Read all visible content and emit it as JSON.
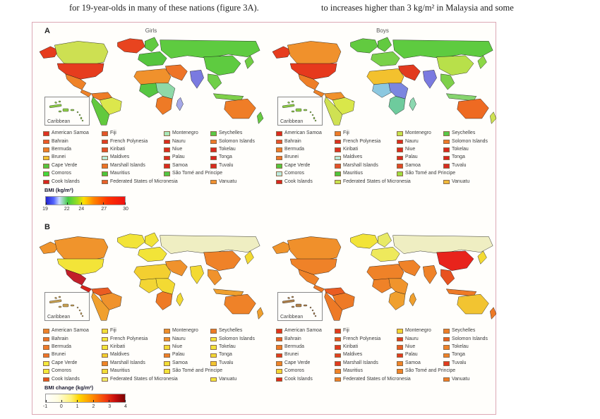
{
  "page": {
    "top_text_left": "for 19-year-olds in many of these nations (figure 3A).",
    "top_text_right": "to increases higher than 3 kg/m² in Malaysia and some"
  },
  "figure": {
    "inset_label": "Caribbean",
    "legend_countries": [
      [
        "American Samoa",
        "Bahrain",
        "Bermuda",
        "Brunei",
        "Cape Verde",
        "Comoros",
        "Cook Islands"
      ],
      [
        "Fiji",
        "French Polynesia",
        "Kiribati",
        "Maldives",
        "Marshall Islands",
        "Mauritius",
        "Federated States of Micronesia"
      ],
      [
        "Montenegro",
        "Nauru",
        "Niue",
        "Palau",
        "Samoa",
        "São Tomé and Principe",
        ""
      ],
      [
        "Seychelles",
        "Solomon Islands",
        "Tokelau",
        "Tonga",
        "Tuvalu",
        "",
        "Vanuatu"
      ]
    ],
    "panelA": {
      "label": "A",
      "girls_title": "Girls",
      "boys_title": "Boys",
      "colorbar": {
        "label": "BMI (kg/m²)",
        "stops": [
          "#2222cc 0%",
          "#5566ff 10%",
          "#ccddff 17%",
          "#44cc44 28%",
          "#99dd22 40%",
          "#ffdd00 48%",
          "#ff8800 60%",
          "#ff3300 78%",
          "#ee1111 100%"
        ],
        "ticks": [
          {
            "label": "19",
            "pct": 0
          },
          {
            "label": "22",
            "pct": 27
          },
          {
            "label": "24",
            "pct": 45
          },
          {
            "label": "27",
            "pct": 73
          },
          {
            "label": "30",
            "pct": 100
          }
        ]
      },
      "girls": {
        "inset_island_color": "#8ccc44",
        "map_colors": {
          "greenland": "#e8441f",
          "alaska": "#e63c1e",
          "canada": "#cde052",
          "usa": "#e63c1e",
          "mexico": "#ef8228",
          "central_america": "#ef8228",
          "colombia": "#ee7c27",
          "brazil": "#dce74c",
          "argentina": "#62c93e",
          "scandinavia": "#62ca40",
          "europe": "#55c53e",
          "russia": "#5ecb40",
          "middle_east": "#ee7427",
          "north_africa": "#f0912c",
          "west_africa": "#56c642",
          "east_africa": "#8fd9a8",
          "south_africa": "#ee7a26",
          "madagascar": "#a5a8e8",
          "india": "#7a7ae0",
          "china": "#5ecb40",
          "se_asia": "#6fcf48",
          "indonesia": "#7ed04a",
          "japan": "#70cd44",
          "australia": "#ef7d27",
          "new_zealand": "#67cb42"
        },
        "legend_colors": [
          [
            "#e03222",
            "#ee5826",
            "#f07e28",
            "#f3c12e",
            "#55c53e",
            "#44d83a",
            "#d9251f"
          ],
          [
            "#e4552a",
            "#e23c22",
            "#e44f28",
            "#b8ead8",
            "#ed7226",
            "#4ec43c",
            "#e8602a"
          ],
          [
            "#a8e8b8",
            "#dc2a1d",
            "#dd2d1e",
            "#dc2a1e",
            "#dc2a1e",
            "#52c643",
            ""
          ],
          [
            "#5ac846",
            "#ee7a28",
            "#da291d",
            "#da251c",
            "#d92b20",
            "",
            "#f09030"
          ]
        ]
      },
      "boys": {
        "inset_island_color": "#8ccc44",
        "map_colors": {
          "greenland": "#62ca40",
          "alaska": "#e63c1e",
          "canada": "#f0912c",
          "usa": "#e6391d",
          "mexico": "#ee7e27",
          "central_america": "#ef8228",
          "colombia": "#f0912c",
          "brazil": "#d9e74a",
          "argentina": "#cfe153",
          "scandinavia": "#62ca40",
          "europe": "#79d149",
          "russia": "#5ecb40",
          "middle_east": "#e23a1e",
          "north_africa": "#f3c12e",
          "west_africa": "#8cc8e0",
          "east_africa": "#7b86e0",
          "south_africa": "#6ecb9d",
          "madagascar": "#8cd8b0",
          "india": "#7a7ae0",
          "china": "#b8e04a",
          "se_asia": "#7ed04a",
          "indonesia": "#86d46e",
          "japan": "#8cd846",
          "australia": "#ee6a22",
          "new_zealand": "#cfe153"
        },
        "legend_colors": [
          [
            "#dd2a1e",
            "#e8502a",
            "#ef7a28",
            "#ee7428",
            "#55c53e",
            "#bce8dc",
            "#d9251f"
          ],
          [
            "#ef7b28",
            "#dc2f20",
            "#dd3322",
            "#b8e8d8",
            "#e5502a",
            "#4ec43c",
            "#c6e24e"
          ],
          [
            "#c4e24c",
            "#dc2a1d",
            "#dc2a1e",
            "#dc2a1e",
            "#e04826",
            "#a0dc40",
            ""
          ],
          [
            "#58c848",
            "#ee7a28",
            "#da291d",
            "#da251c",
            "#d92b20",
            "",
            "#f0b93a"
          ]
        ]
      }
    },
    "panelB": {
      "label": "B",
      "colorbar": {
        "label": "BMI change (kg/m²)",
        "stops": [
          "#ffffff 0%",
          "#fffde0 15%",
          "#fff176 32%",
          "#ffd500 42%",
          "#ff9000 58%",
          "#f23a10 76%",
          "#c40d0d 88%",
          "#7a0403 100%"
        ],
        "ticks": [
          {
            "label": "-1",
            "pct": 0
          },
          {
            "label": "0",
            "pct": 20
          },
          {
            "label": "1",
            "pct": 40
          },
          {
            "label": "2",
            "pct": 60
          },
          {
            "label": "3",
            "pct": 80
          },
          {
            "label": "4",
            "pct": 100
          }
        ]
      },
      "girls": {
        "inset_island_color": "#c8a050",
        "map_colors": {
          "greenland": "#f2e438",
          "alaska": "#f0942c",
          "canada": "#f0942c",
          "usa": "#f3e438",
          "mexico": "#c21f2a",
          "central_america": "#d8251c",
          "colombia": "#ea5c22",
          "brazil": "#f0922c",
          "argentina": "#f0a02e",
          "scandinavia": "#f2e438",
          "europe": "#f2e438",
          "russia": "#efeec2",
          "middle_east": "#f0922c",
          "north_africa": "#f3cf30",
          "west_africa": "#f3d634",
          "east_africa": "#f3da33",
          "south_africa": "#ee7a26",
          "madagascar": "#f3da33",
          "india": "#f3da33",
          "china": "#ef8228",
          "se_asia": "#f0922c",
          "indonesia": "#f0a02e",
          "japan": "#f3da33",
          "australia": "#ef8228",
          "new_zealand": "#f0a02e"
        },
        "legend_colors": [
          [
            "#ef8229",
            "#ee7427",
            "#ef7a28",
            "#f07326",
            "#f5e93c",
            "#f4ea3a",
            "#e6541f"
          ],
          [
            "#f2df36",
            "#f4ea3a",
            "#f2e438",
            "#f3cf30",
            "#ef8428",
            "#f2dd35",
            "#f2ed66"
          ],
          [
            "#ef8e2a",
            "#f08f2b",
            "#f3da33",
            "#ef7f27",
            "#f2dd35",
            "#f3e438",
            ""
          ],
          [
            "#ee7a26",
            "#f4e63a",
            "#f3e139",
            "#f3d834",
            "#f2c431",
            "",
            "#f4e63c"
          ]
        ]
      },
      "boys": {
        "inset_island_color": "#b08048",
        "map_colors": {
          "greenland": "#f2e438",
          "alaska": "#f0942c",
          "canada": "#f0902b",
          "usa": "#ef8228",
          "mexico": "#ef8228",
          "central_america": "#ee7a26",
          "colombia": "#ea5c22",
          "brazil": "#ee7a26",
          "argentina": "#ee7a26",
          "scandinavia": "#e8ea66",
          "europe": "#eee95c",
          "russia": "#efeec2",
          "middle_east": "#ef8228",
          "north_africa": "#ef8228",
          "west_africa": "#ef8228",
          "east_africa": "#f0942c",
          "south_africa": "#f0a02e",
          "madagascar": "#f0a02e",
          "india": "#ef8228",
          "china": "#e8231c",
          "se_asia": "#e8521f",
          "indonesia": "#ee7a26",
          "japan": "#f3da33",
          "australia": "#f2c431",
          "new_zealand": "#ee7a26"
        },
        "legend_colors": [
          [
            "#e1331c",
            "#ea5c22",
            "#ee7a26",
            "#e33a1d",
            "#ef8428",
            "#f3d634",
            "#df2b1b"
          ],
          [
            "#e23a1e",
            "#e8521f",
            "#e23a1e",
            "#e4401e",
            "#e23a1e",
            "#ef8428",
            "#ee8128"
          ],
          [
            "#f3d634",
            "#e23a1e",
            "#e85c22",
            "#e33a1d",
            "#ef8428",
            "#ef8428",
            ""
          ],
          [
            "#ee7e27",
            "#e9601f",
            "#ef8227",
            "#ef8227",
            "#e23a1e",
            "",
            "#ef7d26"
          ]
        ]
      }
    }
  },
  "chart_data": [
    {
      "type": "heatmap",
      "title": "Panel A: mean BMI by country, world choropleth maps for Girls and Boys",
      "scale_label": "BMI (kg/m²)",
      "scale_range": [
        19,
        30
      ],
      "scale_ticks": [
        19,
        22,
        24,
        27,
        30
      ],
      "legend_position": "below-maps"
    },
    {
      "type": "heatmap",
      "title": "Panel B: BMI change by country, world choropleth maps for Girls and Boys",
      "scale_label": "BMI change (kg/m²)",
      "scale_range": [
        -1,
        4
      ],
      "scale_ticks": [
        -1,
        0,
        1,
        2,
        3,
        4
      ],
      "legend_position": "below-maps"
    }
  ]
}
